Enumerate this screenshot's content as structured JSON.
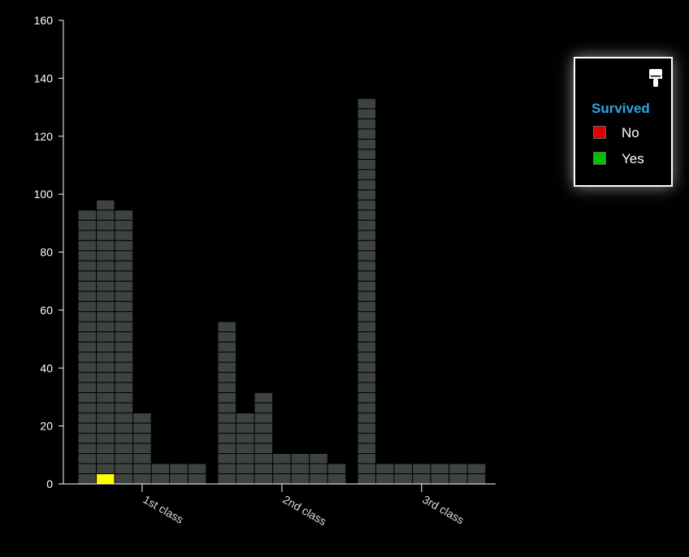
{
  "chart_data": {
    "type": "waffle-bar",
    "title": "",
    "xlabel": "",
    "ylabel": "",
    "ylim": [
      0,
      160
    ],
    "yticks": [
      0,
      20,
      40,
      60,
      80,
      100,
      120,
      140,
      160
    ],
    "categories": [
      "1st class",
      "2nd class",
      "3rd class"
    ],
    "columns_per_category": 7,
    "units_per_cell": 3.5,
    "columns": [
      [
        "ddddddddddddddddddddddddddd",
        "yddddddddddddddddddddddddddd",
        "ddddddddddddddddddddddddddd",
        "ddddddd",
        "dd",
        "dd",
        "dd"
      ],
      [
        "dddddddddddddddd",
        "ddddddd",
        "ddddddddd",
        "ddd",
        "ddd",
        "ddd",
        "dd"
      ],
      [
        "dddddddddddddddddddddddddddddddddddddd",
        "dd",
        "dd",
        "dd",
        "dd",
        "dd",
        "dd"
      ]
    ],
    "series": [
      {
        "name": "No",
        "color": "#e00000"
      },
      {
        "name": "Yes",
        "color": "#00c000"
      }
    ],
    "cell_colors": {
      "g": "#3d4440",
      "r": "#4d4449",
      "y": "#ffff00",
      "p": "#800080"
    },
    "grid": "off"
  },
  "legend": {
    "title": "Survived",
    "items": [
      {
        "label": "No",
        "color": "#e00000"
      },
      {
        "label": "Yes",
        "color": "#00c000"
      }
    ],
    "icon": "paint-brush-icon"
  }
}
